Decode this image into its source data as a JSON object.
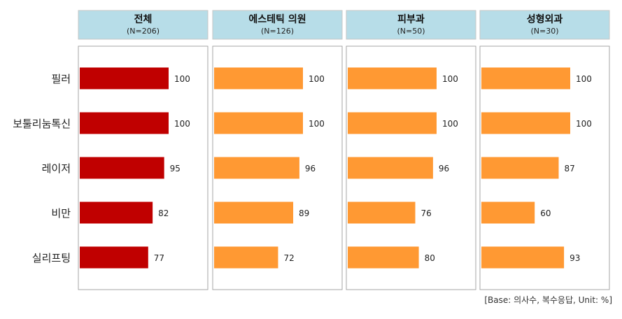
{
  "chart_data": {
    "type": "bar",
    "orientation": "horizontal",
    "categories": [
      "필러",
      "보툴리눔톡신",
      "레이저",
      "비만",
      "실리프팅"
    ],
    "xlim": [
      0,
      100
    ],
    "grid": false,
    "panels": [
      {
        "title": "전체",
        "subtitle": "(N=206)",
        "color": "#C00000",
        "values": [
          100,
          100,
          95,
          82,
          77
        ]
      },
      {
        "title": "에스테틱 의원",
        "subtitle": "(N=126)",
        "color": "#FF9933",
        "values": [
          100,
          100,
          96,
          89,
          72
        ]
      },
      {
        "title": "피부과",
        "subtitle": "(N=50)",
        "color": "#FF9933",
        "values": [
          100,
          100,
          96,
          76,
          80
        ]
      },
      {
        "title": "성형외과",
        "subtitle": "(N=30)",
        "color": "#FF9933",
        "values": [
          100,
          100,
          87,
          60,
          93
        ]
      }
    ],
    "footnote": "[Base: 의사수, 복수응답,  Unit: %]",
    "header_color": "#B7DDE8"
  }
}
